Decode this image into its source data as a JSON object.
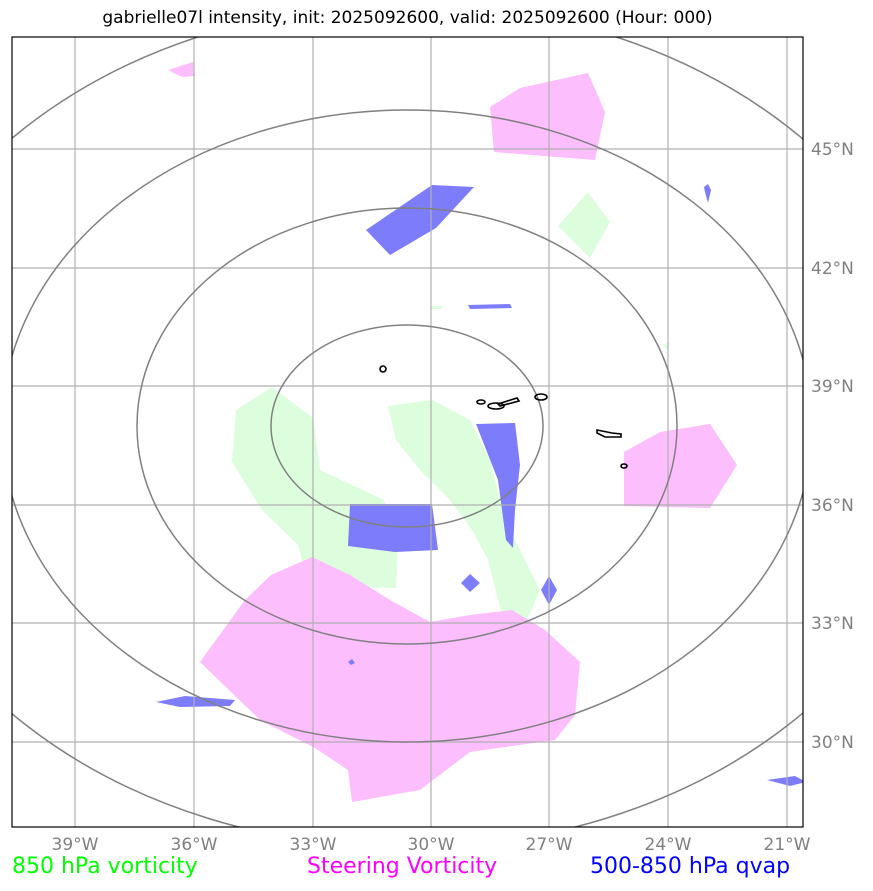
{
  "title": "gabrielle07l intensity, init: 2025092600, valid: 2025092600 (Hour: 000)",
  "map": {
    "x_ticks": [
      "39°W",
      "36°W",
      "33°W",
      "30°W",
      "27°W",
      "24°W",
      "21°W"
    ],
    "y_ticks": [
      "45°N",
      "42°N",
      "39°N",
      "36°N",
      "33°N",
      "30°N"
    ],
    "colors": {
      "vorticity_850": "#ddfedd",
      "steering_vorticity": "#fdbefd",
      "qvap": "#7d7dfb",
      "grid": "#b0b0b0",
      "range_rings": "#808080",
      "contour": "#000000"
    }
  },
  "legend": {
    "vorticity_850": {
      "label": "850 hPa vorticity",
      "color": "#00ff00"
    },
    "steering_vorticity": {
      "label": "Steering Vorticity",
      "color": "#ff00ff"
    },
    "qvap": {
      "label": "500-850 hPa qvap",
      "color": "#0000ff"
    }
  }
}
